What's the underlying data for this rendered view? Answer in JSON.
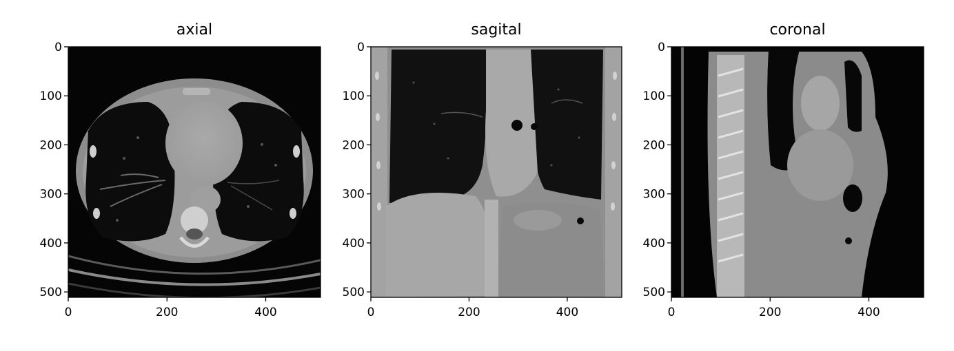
{
  "figure": {
    "panels": [
      {
        "title": "axial",
        "x_ticks": [
          "0",
          "200",
          "400"
        ],
        "y_ticks": [
          "0",
          "100",
          "200",
          "300",
          "400",
          "500"
        ],
        "x_tick_values": [
          0,
          200,
          400
        ],
        "y_tick_values": [
          0,
          100,
          200,
          300,
          400,
          500
        ],
        "x_range": [
          0,
          511
        ],
        "y_range": [
          511,
          0
        ]
      },
      {
        "title": "sagital",
        "x_ticks": [
          "0",
          "200",
          "400"
        ],
        "y_ticks": [
          "0",
          "100",
          "200",
          "300",
          "400",
          "500"
        ],
        "x_tick_values": [
          0,
          200,
          400
        ],
        "y_tick_values": [
          0,
          100,
          200,
          300,
          400,
          500
        ],
        "x_range": [
          0,
          511
        ],
        "y_range": [
          511,
          0
        ]
      },
      {
        "title": "coronal",
        "x_ticks": [
          "0",
          "200",
          "400"
        ],
        "y_ticks": [
          "0",
          "100",
          "200",
          "300",
          "400",
          "500"
        ],
        "x_tick_values": [
          0,
          200,
          400
        ],
        "y_tick_values": [
          0,
          100,
          200,
          300,
          400,
          500
        ],
        "x_range": [
          0,
          511
        ],
        "y_range": [
          511,
          0
        ]
      }
    ],
    "colormap": "gray"
  }
}
